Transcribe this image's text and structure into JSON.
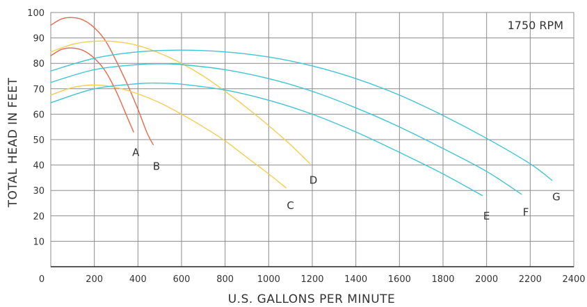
{
  "chart_data": {
    "type": "line",
    "xlabel": "U.S. GALLONS PER MINUTE",
    "ylabel": "TOTAL HEAD IN FEET",
    "annotation": "1750 RPM",
    "xlim": [
      0,
      2400
    ],
    "ylim": [
      0,
      100
    ],
    "x_ticks": [
      0,
      200,
      400,
      600,
      800,
      1000,
      1200,
      1400,
      1600,
      1800,
      2000,
      2200,
      2400
    ],
    "y_ticks": [
      10,
      20,
      30,
      40,
      50,
      60,
      70,
      80,
      90,
      100
    ],
    "grid": true,
    "series": [
      {
        "name": "A",
        "color": "#e8664a",
        "points": [
          [
            0,
            83
          ],
          [
            50,
            85.5
          ],
          [
            100,
            86
          ],
          [
            150,
            85
          ],
          [
            200,
            82
          ],
          [
            250,
            77
          ],
          [
            300,
            69
          ],
          [
            350,
            59
          ],
          [
            380,
            53
          ]
        ]
      },
      {
        "name": "B",
        "color": "#e8664a",
        "points": [
          [
            0,
            95
          ],
          [
            50,
            97.5
          ],
          [
            100,
            98
          ],
          [
            150,
            97
          ],
          [
            200,
            94
          ],
          [
            250,
            89
          ],
          [
            300,
            81
          ],
          [
            350,
            72
          ],
          [
            400,
            62
          ],
          [
            440,
            53
          ],
          [
            470,
            48
          ]
        ]
      },
      {
        "name": "C",
        "color": "#f5cd50",
        "points": [
          [
            0,
            67.5
          ],
          [
            100,
            70.5
          ],
          [
            200,
            71.5
          ],
          [
            300,
            70.5
          ],
          [
            400,
            68
          ],
          [
            500,
            64.5
          ],
          [
            600,
            60
          ],
          [
            700,
            55
          ],
          [
            800,
            49.5
          ],
          [
            900,
            43
          ],
          [
            1000,
            36.5
          ],
          [
            1080,
            31
          ]
        ]
      },
      {
        "name": "D",
        "color": "#f5cd50",
        "points": [
          [
            0,
            84.5
          ],
          [
            100,
            87.5
          ],
          [
            200,
            88.7
          ],
          [
            300,
            88.5
          ],
          [
            400,
            87
          ],
          [
            500,
            84
          ],
          [
            600,
            80
          ],
          [
            700,
            75
          ],
          [
            800,
            69
          ],
          [
            900,
            62.5
          ],
          [
            1000,
            55.5
          ],
          [
            1100,
            48
          ],
          [
            1190,
            40.5
          ]
        ]
      },
      {
        "name": "E",
        "color": "#3fc4d6",
        "points": [
          [
            0,
            64.5
          ],
          [
            200,
            70
          ],
          [
            400,
            72
          ],
          [
            500,
            72.2
          ],
          [
            600,
            71.8
          ],
          [
            800,
            69.5
          ],
          [
            1000,
            65.5
          ],
          [
            1200,
            60
          ],
          [
            1400,
            53
          ],
          [
            1600,
            45
          ],
          [
            1800,
            36.5
          ],
          [
            1980,
            28
          ]
        ]
      },
      {
        "name": "F",
        "color": "#3fc4d6",
        "points": [
          [
            0,
            72.5
          ],
          [
            200,
            77.5
          ],
          [
            400,
            79.5
          ],
          [
            500,
            79.8
          ],
          [
            600,
            79.5
          ],
          [
            800,
            77.5
          ],
          [
            1000,
            74
          ],
          [
            1200,
            69
          ],
          [
            1400,
            62.5
          ],
          [
            1600,
            55
          ],
          [
            1800,
            46.5
          ],
          [
            2000,
            37.5
          ],
          [
            2160,
            28.5
          ]
        ]
      },
      {
        "name": "G",
        "color": "#3fc4d6",
        "points": [
          [
            0,
            77
          ],
          [
            200,
            82
          ],
          [
            400,
            84.5
          ],
          [
            600,
            85.2
          ],
          [
            800,
            84.5
          ],
          [
            1000,
            82.5
          ],
          [
            1200,
            79
          ],
          [
            1400,
            74
          ],
          [
            1600,
            67.5
          ],
          [
            1800,
            59.5
          ],
          [
            2000,
            50.5
          ],
          [
            2200,
            40.5
          ],
          [
            2300,
            34
          ]
        ]
      }
    ],
    "labels": [
      {
        "text": "A",
        "x": 390,
        "y": 45
      },
      {
        "text": "B",
        "x": 485,
        "y": 39.5
      },
      {
        "text": "C",
        "x": 1100,
        "y": 24
      },
      {
        "text": "D",
        "x": 1205,
        "y": 34
      },
      {
        "text": "E",
        "x": 2000,
        "y": 20
      },
      {
        "text": "F",
        "x": 2180,
        "y": 21.5
      },
      {
        "text": "G",
        "x": 2320,
        "y": 27.5
      }
    ]
  }
}
